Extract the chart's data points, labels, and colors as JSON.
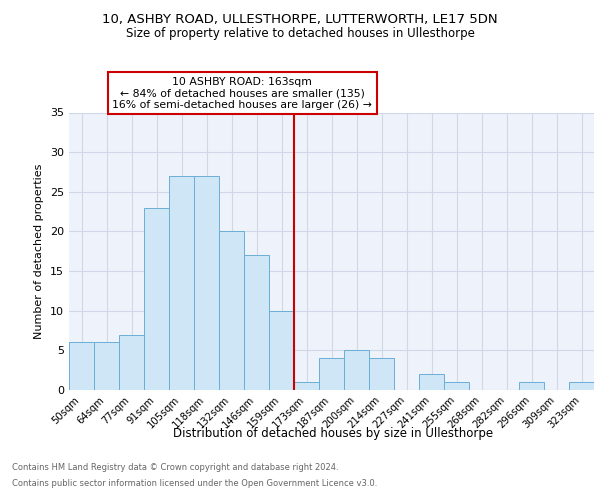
{
  "title": "10, ASHBY ROAD, ULLESTHORPE, LUTTERWORTH, LE17 5DN",
  "subtitle": "Size of property relative to detached houses in Ullesthorpe",
  "xlabel": "Distribution of detached houses by size in Ullesthorpe",
  "ylabel": "Number of detached properties",
  "counts": [
    6,
    6,
    7,
    23,
    27,
    27,
    20,
    17,
    10,
    1,
    4,
    5,
    4,
    0,
    2,
    1,
    0,
    0,
    1,
    0,
    1
  ],
  "bin_labels": [
    "50sqm",
    "64sqm",
    "77sqm",
    "91sqm",
    "105sqm",
    "118sqm",
    "132sqm",
    "146sqm",
    "159sqm",
    "173sqm",
    "187sqm",
    "200sqm",
    "214sqm",
    "227sqm",
    "241sqm",
    "255sqm",
    "268sqm",
    "282sqm",
    "296sqm",
    "309sqm",
    "323sqm"
  ],
  "bar_facecolor": "#cfe6f7",
  "bar_edgecolor": "#6aaed6",
  "vline_color": "#cc0000",
  "vline_index": 8.5,
  "annotation_line1": "10 ASHBY ROAD: 163sqm",
  "annotation_line2": "← 84% of detached houses are smaller (135)",
  "annotation_line3": "16% of semi-detached houses are larger (26) →",
  "annotation_box_edgecolor": "#cc0000",
  "annotation_box_facecolor": "white",
  "grid_color": "#d0d8e8",
  "background_color": "#eef2fa",
  "ylim": [
    0,
    35
  ],
  "yticks": [
    0,
    5,
    10,
    15,
    20,
    25,
    30,
    35
  ],
  "footer_line1": "Contains HM Land Registry data © Crown copyright and database right 2024.",
  "footer_line2": "Contains public sector information licensed under the Open Government Licence v3.0."
}
